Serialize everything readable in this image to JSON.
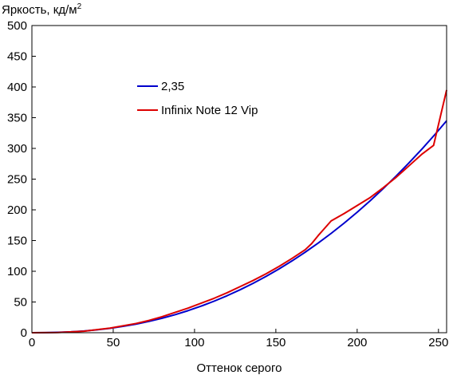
{
  "chart_data": {
    "type": "line",
    "ylabel": "Яркость, кд/м",
    "ylabel_superscript": "2",
    "xlabel": "Оттенок серого",
    "xlim": [
      0,
      255
    ],
    "ylim": [
      0,
      500
    ],
    "xticks": [
      0,
      50,
      100,
      150,
      200,
      250
    ],
    "yticks": [
      0,
      50,
      100,
      150,
      200,
      250,
      300,
      350,
      400,
      450,
      500
    ],
    "grid": false,
    "legend_position": "upper-left",
    "series": [
      {
        "name": "2,35",
        "color": "#0000cc",
        "x": [
          0,
          8,
          16,
          24,
          32,
          40,
          48,
          56,
          64,
          72,
          80,
          88,
          96,
          104,
          112,
          120,
          128,
          136,
          144,
          152,
          160,
          168,
          176,
          184,
          192,
          200,
          208,
          216,
          224,
          232,
          240,
          248,
          255
        ],
        "y": [
          0,
          0.1,
          0.6,
          1.4,
          2.8,
          4.7,
          7.2,
          10.3,
          14.0,
          18.4,
          23.5,
          29.3,
          35.9,
          43.2,
          51.3,
          60.2,
          69.9,
          80.4,
          91.7,
          103.9,
          117.0,
          131.0,
          145.9,
          161.7,
          178.4,
          196.1,
          214.8,
          234.5,
          255.1,
          276.8,
          299.5,
          323.2,
          345.0
        ]
      },
      {
        "name": "Infinix Note 12 Vip",
        "color": "#dd0000",
        "x": [
          0,
          16,
          32,
          48,
          64,
          72,
          80,
          88,
          96,
          104,
          112,
          120,
          128,
          136,
          144,
          152,
          160,
          168,
          172,
          176,
          180,
          184,
          192,
          200,
          208,
          216,
          224,
          232,
          240,
          247,
          255
        ],
        "y": [
          0,
          0.3,
          2.5,
          7.5,
          15,
          20,
          26,
          33,
          40,
          48,
          56,
          65,
          75,
          85,
          96,
          108,
          121,
          135,
          145,
          158,
          170,
          182,
          194,
          207,
          220,
          236,
          253,
          272,
          291,
          305,
          395
        ]
      }
    ]
  }
}
